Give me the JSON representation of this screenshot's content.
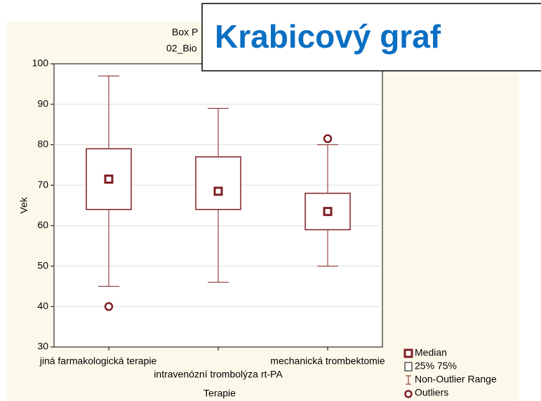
{
  "chart_data": {
    "type": "box",
    "title": "Box P",
    "subtitle": "02_Bio",
    "overlay_title": "Krabicový graf",
    "xlabel": "Terapie",
    "ylabel": "Vek",
    "categories": [
      "jiná farmakologická terapie",
      "intravenózní trombolýza rt-PA",
      "mechanická trombektomie"
    ],
    "boxes": [
      {
        "min": 45,
        "q1": 64,
        "median": 71.5,
        "q3": 79,
        "max": 97,
        "outliers": [
          40
        ]
      },
      {
        "min": 46,
        "q1": 64,
        "median": 68.5,
        "q3": 77,
        "max": 89,
        "outliers": []
      },
      {
        "min": 50,
        "q1": 59,
        "median": 63.5,
        "q3": 68,
        "max": 80,
        "outliers": [
          81.5
        ]
      }
    ],
    "color": "#7f1f22",
    "ylim": [
      30,
      100
    ],
    "yticks": [
      30,
      40,
      50,
      60,
      70,
      80,
      90,
      100
    ],
    "grid": true,
    "legend": [
      "Median",
      "25% 75%",
      "Non-Outlier Range",
      "Outliers"
    ]
  }
}
